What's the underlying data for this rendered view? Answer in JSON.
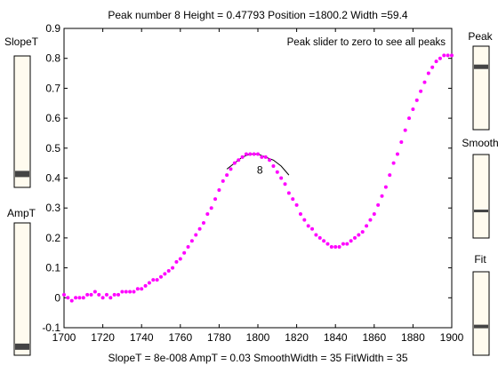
{
  "header": {
    "title": "Peak number 8    Height = 0.47793    Position =1800.2    Width =59.4"
  },
  "footer": {
    "status": "SlopeT = 8e-008    AmpT = 0.03    SmoothWidth = 35    FitWidth = 35"
  },
  "sliders": {
    "slopeT": {
      "label": "SlopeT",
      "value": 0.07
    },
    "ampT": {
      "label": "AmpT",
      "value": 0.03
    },
    "peak": {
      "label": "Peak",
      "value": 0.78
    },
    "smooth": {
      "label": "Smooth",
      "value": 0.31
    },
    "fit": {
      "label": "Fit",
      "value": 0.33
    }
  },
  "colors": {
    "data": "#ff00ff",
    "fit_line": "#000000",
    "slider_track": "#fffbef",
    "slider_thumb": "#444444"
  },
  "chart_data": {
    "type": "scatter",
    "annotation": "Peak slider to zero to see all peaks",
    "peak_label": "8",
    "xlim": [
      1700,
      1900
    ],
    "ylim": [
      -0.1,
      0.9
    ],
    "xticks": [
      1700,
      1720,
      1740,
      1760,
      1780,
      1800,
      1820,
      1840,
      1860,
      1880,
      1900
    ],
    "yticks": [
      -0.1,
      0,
      0.1,
      0.2,
      0.3,
      0.4,
      0.5,
      0.6,
      0.7,
      0.8,
      0.9
    ],
    "points_x": [
      1700,
      1702,
      1704,
      1706,
      1708,
      1710,
      1712,
      1714,
      1716,
      1718,
      1720,
      1722,
      1724,
      1726,
      1728,
      1730,
      1732,
      1734,
      1736,
      1738,
      1740,
      1742,
      1744,
      1746,
      1748,
      1750,
      1752,
      1754,
      1756,
      1758,
      1760,
      1762,
      1764,
      1766,
      1768,
      1770,
      1772,
      1774,
      1776,
      1778,
      1780,
      1782,
      1784,
      1786,
      1788,
      1790,
      1792,
      1794,
      1796,
      1798,
      1800,
      1802,
      1804,
      1806,
      1808,
      1810,
      1812,
      1814,
      1816,
      1818,
      1820,
      1822,
      1824,
      1826,
      1828,
      1830,
      1832,
      1834,
      1836,
      1838,
      1840,
      1842,
      1844,
      1846,
      1848,
      1850,
      1852,
      1854,
      1856,
      1858,
      1860,
      1862,
      1864,
      1866,
      1868,
      1870,
      1872,
      1874,
      1876,
      1878,
      1880,
      1882,
      1884,
      1886,
      1888,
      1890,
      1892,
      1894,
      1896,
      1898,
      1900
    ],
    "points_y": [
      0.01,
      0.0,
      -0.01,
      0.0,
      0.0,
      0.0,
      0.01,
      0.01,
      0.02,
      0.01,
      0.0,
      0.01,
      0.0,
      0.01,
      0.01,
      0.02,
      0.02,
      0.02,
      0.02,
      0.03,
      0.03,
      0.04,
      0.05,
      0.06,
      0.06,
      0.07,
      0.08,
      0.09,
      0.1,
      0.12,
      0.13,
      0.15,
      0.17,
      0.19,
      0.21,
      0.23,
      0.25,
      0.28,
      0.3,
      0.33,
      0.36,
      0.39,
      0.41,
      0.43,
      0.45,
      0.46,
      0.47,
      0.48,
      0.48,
      0.48,
      0.48,
      0.47,
      0.47,
      0.46,
      0.44,
      0.42,
      0.4,
      0.38,
      0.35,
      0.33,
      0.31,
      0.28,
      0.26,
      0.24,
      0.23,
      0.21,
      0.2,
      0.19,
      0.18,
      0.17,
      0.17,
      0.17,
      0.18,
      0.18,
      0.19,
      0.2,
      0.21,
      0.22,
      0.24,
      0.26,
      0.28,
      0.31,
      0.34,
      0.37,
      0.41,
      0.45,
      0.48,
      0.52,
      0.56,
      0.6,
      0.63,
      0.66,
      0.69,
      0.72,
      0.75,
      0.77,
      0.79,
      0.8,
      0.81,
      0.81,
      0.81
    ],
    "fit_x": [
      1784,
      1788,
      1792,
      1796,
      1800,
      1804,
      1808,
      1812,
      1816
    ],
    "fit_y": [
      0.43,
      0.45,
      0.47,
      0.48,
      0.48,
      0.47,
      0.46,
      0.44,
      0.41
    ]
  }
}
